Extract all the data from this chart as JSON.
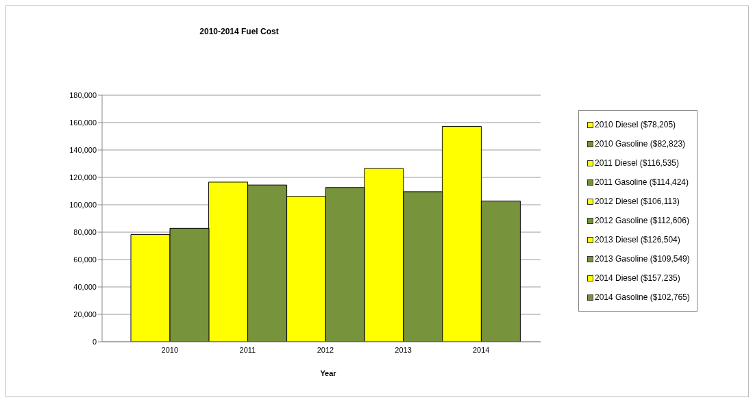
{
  "chart_data": {
    "type": "bar",
    "title": "2010-2014 Fuel Cost",
    "xlabel": "Year",
    "categories": [
      "2010",
      "2011",
      "2012",
      "2013",
      "2014"
    ],
    "series": [
      {
        "name": "2010 Diesel ($78,205)",
        "color": "#ffff00",
        "values": [
          78205,
          null,
          null,
          null,
          null
        ]
      },
      {
        "name": "2010 Gasoline ($82,823)",
        "color": "#77933c",
        "values": [
          82823,
          null,
          null,
          null,
          null
        ]
      },
      {
        "name": "2011 Diesel ($116,535)",
        "color": "#ffff00",
        "values": [
          null,
          116535,
          null,
          null,
          null
        ]
      },
      {
        "name": "2011 Gasoline ($114,424)",
        "color": "#77933c",
        "values": [
          null,
          114424,
          null,
          null,
          null
        ]
      },
      {
        "name": "2012 Diesel ($106,113)",
        "color": "#ffff00",
        "values": [
          null,
          null,
          106113,
          null,
          null
        ]
      },
      {
        "name": "2012 Gasoline ($112,606)",
        "color": "#77933c",
        "values": [
          null,
          null,
          112606,
          null,
          null
        ]
      },
      {
        "name": "2013 Diesel ($126,504)",
        "color": "#ffff00",
        "values": [
          null,
          null,
          null,
          126504,
          null
        ]
      },
      {
        "name": "2013 Gasoline ($109,549)",
        "color": "#77933c",
        "values": [
          null,
          null,
          null,
          109549,
          null
        ]
      },
      {
        "name": "2014 Diesel ($157,235)",
        "color": "#ffff00",
        "values": [
          null,
          null,
          null,
          null,
          157235
        ]
      },
      {
        "name": "2014 Gasoline ($102,765)",
        "color": "#77933c",
        "values": [
          null,
          null,
          null,
          null,
          102765
        ]
      }
    ],
    "ylim": [
      0,
      180000
    ],
    "yticks": [
      {
        "value": 0,
        "label": "0"
      },
      {
        "value": 20000,
        "label": "20,000"
      },
      {
        "value": 40000,
        "label": "40,000"
      },
      {
        "value": 60000,
        "label": "60,000"
      },
      {
        "value": 80000,
        "label": "80,000"
      },
      {
        "value": 100000,
        "label": "100,000"
      },
      {
        "value": 120000,
        "label": "120,000"
      },
      {
        "value": 140000,
        "label": "140,000"
      },
      {
        "value": 160000,
        "label": "160,000"
      },
      {
        "value": 180000,
        "label": "180,000"
      }
    ],
    "grid": "y",
    "legend": "right"
  }
}
